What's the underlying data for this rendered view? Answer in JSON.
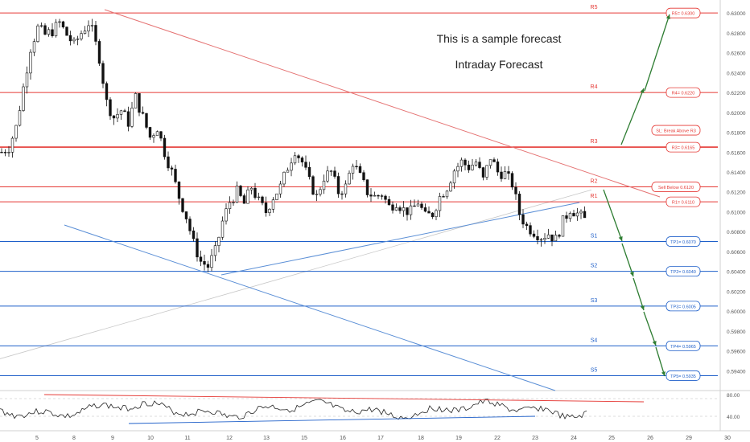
{
  "annotations": {
    "line1": "This is a sample forecast",
    "line2": "Intraday Forecast"
  },
  "colors": {
    "resistance": "#e53935",
    "support": "#1e5fc9",
    "arrow": "#2e7d32",
    "candle": "#111111",
    "trend_red": "#e57373",
    "trend_blue": "#5b8fd6",
    "ma_gray": "#c8c8c8"
  },
  "chart_data": {
    "type": "candlestick",
    "ylim": [
      0.592,
      0.6305
    ],
    "y_ticks": [
      "0.63000",
      "0.62800",
      "0.62600",
      "0.62400",
      "0.62200",
      "0.62000",
      "0.61800",
      "0.61600",
      "0.61400",
      "0.61200",
      "0.61000",
      "0.60800",
      "0.60600",
      "0.60400",
      "0.60200",
      "0.60000",
      "0.59800",
      "0.59600",
      "0.59400"
    ],
    "x_ticks": [
      "5",
      "8",
      "9",
      "10",
      "11",
      "12",
      "13",
      "15",
      "16",
      "17",
      "18",
      "19",
      "22",
      "23",
      "24",
      "25",
      "26",
      "29",
      "30"
    ],
    "levels": [
      {
        "label": "R5",
        "value": 0.63,
        "box": "R5= 0.6300",
        "kind": "resistance"
      },
      {
        "label": "R4",
        "value": 0.622,
        "box": "R4= 0.6220",
        "kind": "resistance"
      },
      {
        "label": "R3",
        "value": 0.6165,
        "box": "R3= 0.6165",
        "kind": "resistance"
      },
      {
        "label": "R2",
        "value": 0.6125,
        "box": "",
        "kind": "resistance"
      },
      {
        "label": "R1",
        "value": 0.611,
        "box": "R1= 0.6110",
        "kind": "resistance"
      },
      {
        "label": "S1",
        "value": 0.607,
        "box": "TP1= 0.6070",
        "kind": "support"
      },
      {
        "label": "S2",
        "value": 0.604,
        "box": "TP2= 0.6040",
        "kind": "support"
      },
      {
        "label": "S3",
        "value": 0.6005,
        "box": "TP3= 0.6005",
        "kind": "support"
      },
      {
        "label": "S4",
        "value": 0.5965,
        "box": "TP4= 0.5965",
        "kind": "support"
      },
      {
        "label": "S5",
        "value": 0.5935,
        "box": "TP5= 0.5935",
        "kind": "support"
      }
    ],
    "extra_boxes": [
      {
        "text": "SL: Break Above R3",
        "value": 0.6182,
        "kind": "resistance"
      },
      {
        "text": "Sell Below  0.6120",
        "value": 0.6125,
        "kind": "resistance"
      }
    ],
    "price_path": [
      [
        0,
        0.616
      ],
      [
        2,
        0.6165
      ],
      [
        4,
        0.6185
      ],
      [
        6,
        0.6225
      ],
      [
        8,
        0.6265
      ],
      [
        10,
        0.6285
      ],
      [
        12,
        0.6278
      ],
      [
        14,
        0.6282
      ],
      [
        16,
        0.629
      ],
      [
        18,
        0.6278
      ],
      [
        20,
        0.6268
      ],
      [
        22,
        0.628
      ],
      [
        24,
        0.629
      ],
      [
        25,
        0.6282
      ],
      [
        27,
        0.6255
      ],
      [
        29,
        0.621
      ],
      [
        31,
        0.6195
      ],
      [
        33,
        0.6202
      ],
      [
        35,
        0.619
      ],
      [
        37,
        0.6215
      ],
      [
        39,
        0.6195
      ],
      [
        41,
        0.6175
      ],
      [
        43,
        0.6185
      ],
      [
        45,
        0.616
      ],
      [
        47,
        0.614
      ],
      [
        49,
        0.6115
      ],
      [
        51,
        0.6095
      ],
      [
        53,
        0.6068
      ],
      [
        55,
        0.605
      ],
      [
        57,
        0.6045
      ],
      [
        59,
        0.606
      ],
      [
        61,
        0.609
      ],
      [
        63,
        0.611
      ],
      [
        65,
        0.612
      ],
      [
        67,
        0.6108
      ],
      [
        69,
        0.6125
      ],
      [
        71,
        0.611
      ],
      [
        73,
        0.61
      ],
      [
        75,
        0.6115
      ],
      [
        77,
        0.6125
      ],
      [
        79,
        0.6145
      ],
      [
        81,
        0.6162
      ],
      [
        83,
        0.615
      ],
      [
        85,
        0.613
      ],
      [
        87,
        0.6115
      ],
      [
        89,
        0.6135
      ],
      [
        91,
        0.614
      ],
      [
        93,
        0.612
      ],
      [
        95,
        0.6125
      ],
      [
        97,
        0.615
      ],
      [
        99,
        0.6135
      ],
      [
        101,
        0.612
      ],
      [
        103,
        0.6115
      ],
      [
        105,
        0.6118
      ],
      [
        107,
        0.6105
      ],
      [
        109,
        0.611
      ],
      [
        111,
        0.6102
      ],
      [
        113,
        0.61
      ],
      [
        115,
        0.611
      ],
      [
        117,
        0.6095
      ],
      [
        119,
        0.6098
      ],
      [
        121,
        0.6115
      ],
      [
        123,
        0.6125
      ],
      [
        125,
        0.6142
      ],
      [
        127,
        0.615
      ],
      [
        129,
        0.6145
      ],
      [
        131,
        0.615
      ],
      [
        133,
        0.6132
      ],
      [
        135,
        0.6155
      ],
      [
        137,
        0.614
      ],
      [
        139,
        0.6138
      ],
      [
        141,
        0.6128
      ],
      [
        143,
        0.6098
      ],
      [
        145,
        0.6085
      ],
      [
        147,
        0.608
      ],
      [
        149,
        0.6075
      ],
      [
        151,
        0.6078
      ],
      [
        153,
        0.6072
      ],
      [
        155,
        0.609
      ],
      [
        157,
        0.6103
      ],
      [
        159,
        0.6098
      ],
      [
        161,
        0.6092
      ]
    ],
    "rsi_labels": [
      "80.00",
      "40.00"
    ]
  }
}
